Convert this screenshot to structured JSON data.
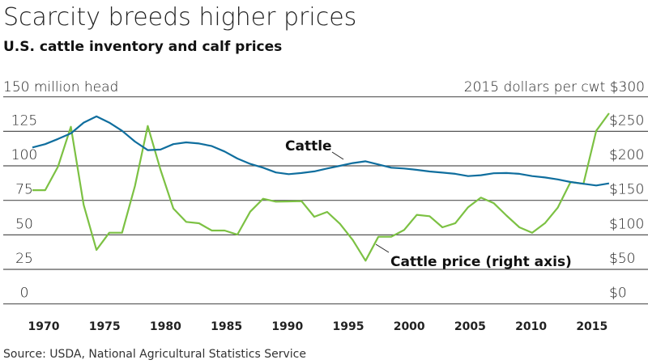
{
  "chart_data": {
    "type": "line",
    "title": "Scarcity breeds higher prices",
    "subtitle": "U.S. cattle inventory and calf prices",
    "source": "Source: USDA, National Agricultural Statistics Service",
    "y_left": {
      "unit_label": "million head",
      "ticks": [
        "0",
        "25",
        "50",
        "75",
        "100",
        "125",
        "150"
      ],
      "range": [
        0,
        150
      ]
    },
    "y_right": {
      "unit_label": "2015 dollars per cwt",
      "ticks": [
        "$0",
        "$50",
        "$100",
        "$150",
        "$200",
        "$250",
        "$300"
      ],
      "range": [
        0,
        300
      ]
    },
    "x_ticks": [
      "1970",
      "1975",
      "1980",
      "1985",
      "1990",
      "1995",
      "2000",
      "2005",
      "2010",
      "2015"
    ],
    "grid": true,
    "x": [
      1970,
      1971,
      1972,
      1973,
      1974,
      1975,
      1976,
      1977,
      1978,
      1979,
      1980,
      1981,
      1982,
      1983,
      1984,
      1985,
      1986,
      1987,
      1988,
      1989,
      1990,
      1991,
      1992,
      1993,
      1994,
      1995,
      1996,
      1997,
      1998,
      1999,
      2000,
      2001,
      2002,
      2003,
      2004,
      2005,
      2006,
      2007,
      2008,
      2009,
      2010,
      2011,
      2012,
      2013,
      2014,
      2015
    ],
    "series": [
      {
        "name": "Cattle",
        "axis": "left",
        "color": "#0f6e9e",
        "values": [
          113.3,
          115.7,
          119.5,
          123.5,
          131.3,
          135.8,
          131.3,
          125.4,
          117.6,
          111.4,
          111.8,
          115.7,
          117,
          116.2,
          114.3,
          110.4,
          105.3,
          101.4,
          98.7,
          95.2,
          94,
          94.8,
          96,
          98.1,
          100,
          102,
          103.3,
          101,
          98.7,
          98.1,
          97.1,
          95.9,
          95.1,
          94.2,
          92.6,
          93.2,
          94.6,
          94.8,
          94.2,
          92.6,
          91.6,
          90.2,
          88.3,
          87,
          85.8,
          87.3
        ]
      },
      {
        "name": "Cattle price (right axis)",
        "axis": "right",
        "color": "#7cc143",
        "values": [
          164.8,
          164.8,
          198.9,
          256.6,
          143.4,
          78.2,
          103.1,
          103.1,
          170.7,
          257.8,
          194.2,
          138.3,
          118.8,
          116.8,
          106.3,
          106.3,
          100.4,
          133.6,
          152.3,
          148.1,
          148.5,
          149,
          126.2,
          133.2,
          116,
          92.6,
          62.6,
          97.3,
          97.3,
          107,
          129,
          127,
          111,
          117,
          140,
          154,
          146,
          128,
          111,
          103,
          117,
          139.5,
          176.6,
          174,
          250.8,
          276.2
        ]
      }
    ]
  }
}
